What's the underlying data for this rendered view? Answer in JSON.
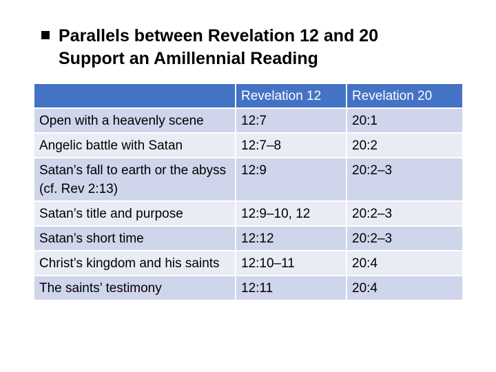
{
  "title": {
    "line1": "Parallels between Revelation 12 and 20",
    "line2": "Support an Amillennial Reading"
  },
  "table": {
    "headers": [
      "",
      "Revelation 12",
      "Revelation 20"
    ],
    "rows": [
      [
        "Open with a heavenly scene",
        "12:7",
        "20:1"
      ],
      [
        "Angelic battle with Satan",
        "12:7–8",
        "20:2"
      ],
      [
        "Satan’s fall to earth or the abyss (cf. Rev 2:13)",
        "12:9",
        "20:2–3"
      ],
      [
        "Satan’s title and purpose",
        "12:9–10, 12",
        "20:2–3"
      ],
      [
        "Satan’s short time",
        "12:12",
        "20:2–3"
      ],
      [
        "Christ’s kingdom and his saints",
        "12:10–11",
        "20:4"
      ],
      [
        "The saints’ testimony",
        "12:11",
        "20:4"
      ]
    ]
  },
  "colors": {
    "header_bg": "#4472c4",
    "row_dark": "#cfd5ea",
    "row_light": "#e9ebf5"
  }
}
